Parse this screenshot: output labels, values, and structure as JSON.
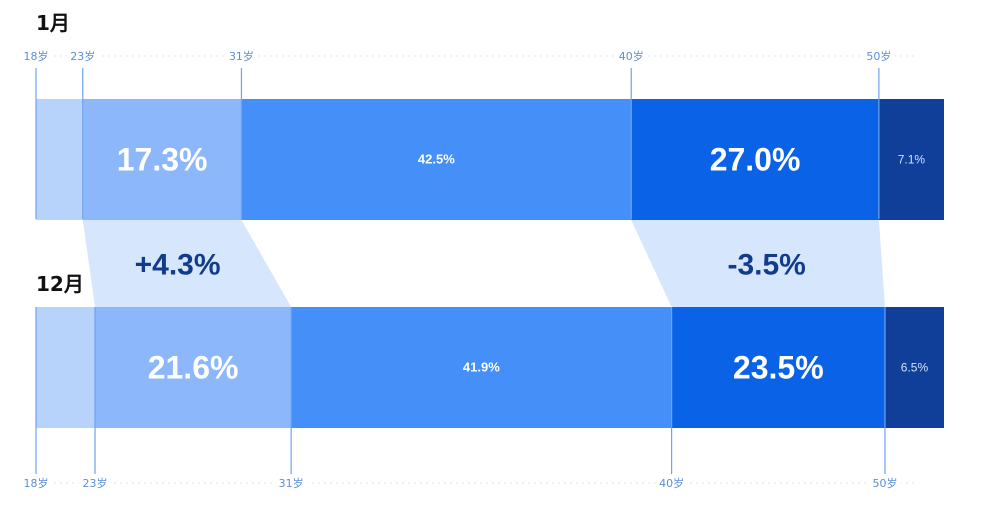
{
  "chart_data": {
    "type": "bar",
    "orientation": "horizontal-stacked",
    "segment_colors": [
      "#b7d2fb",
      "#8cb8fb",
      "#4590f8",
      "#0a63e6",
      "#0f3f98"
    ],
    "age_bands": [
      "18-23岁",
      "23-31岁",
      "31-40岁",
      "40-50岁",
      "50岁+"
    ],
    "rows": [
      {
        "name": "1月",
        "boundaries": [
          "18岁",
          "23岁",
          "31岁",
          "40岁",
          "50岁"
        ],
        "labels": [
          "",
          "17.3%",
          "42.5%",
          "27.0%",
          "7.1%"
        ],
        "values": [
          5.1,
          17.3,
          42.5,
          27.0,
          7.1
        ]
      },
      {
        "name": "12月",
        "boundaries": [
          "18岁",
          "23岁",
          "31岁",
          "40岁",
          "50岁"
        ],
        "labels": [
          "",
          "21.6%",
          "41.9%",
          "23.5%",
          "6.5%"
        ],
        "values": [
          6.5,
          21.6,
          41.9,
          23.5,
          6.5
        ]
      }
    ],
    "changes": [
      {
        "band": "23-31岁",
        "label": "+4.3%"
      },
      {
        "band": "40-50岁",
        "label": "-3.5%"
      }
    ]
  }
}
